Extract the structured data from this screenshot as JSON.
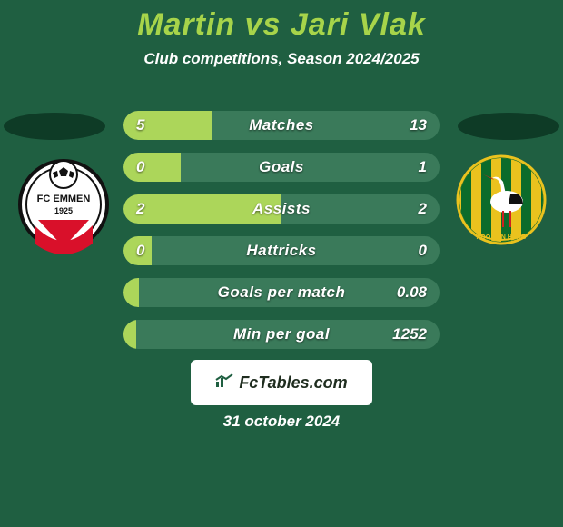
{
  "page": {
    "background_color": "#1f5f41",
    "text_color": "#ffffff",
    "title_color": "#a7d44a",
    "shadow_color": "#0e3b26"
  },
  "header": {
    "title": "Martin vs Jari Vlak",
    "subtitle": "Club competitions, Season 2024/2025"
  },
  "left_team": {
    "name": "FC Emmen"
  },
  "right_team": {
    "name": "ADO Den Haag"
  },
  "stats": {
    "bar_bg": "#3a7a5a",
    "fill_color": "#acd65a",
    "rows": [
      {
        "label": "Matches",
        "left": "5",
        "right": "13",
        "fill_pct": 28
      },
      {
        "label": "Goals",
        "left": "0",
        "right": "1",
        "fill_pct": 18
      },
      {
        "label": "Assists",
        "left": "2",
        "right": "2",
        "fill_pct": 50
      },
      {
        "label": "Hattricks",
        "left": "0",
        "right": "0",
        "fill_pct": 9
      },
      {
        "label": "Goals per match",
        "left": "",
        "right": "0.08",
        "fill_pct": 5
      },
      {
        "label": "Min per goal",
        "left": "",
        "right": "1252",
        "fill_pct": 4
      }
    ]
  },
  "footer": {
    "logo_bg": "#ffffff",
    "logo_text_color": "#1f2d1f",
    "logo_text": "FcTables.com",
    "date": "31 october 2024"
  }
}
